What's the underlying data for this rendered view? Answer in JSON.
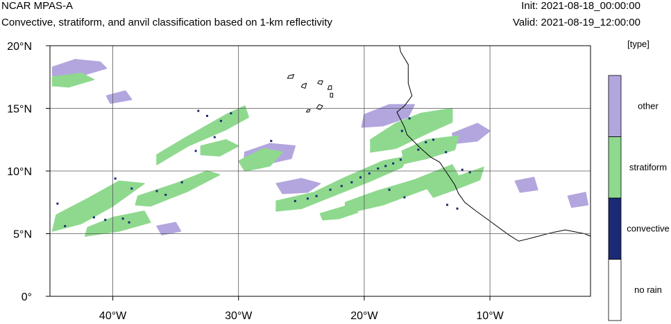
{
  "header": {
    "title": "NCAR MPAS-A",
    "subtitle": "Convective, stratiform, and anvil classification based on 1-km reflectivity",
    "init": "Init: 2021-08-18_00:00:00",
    "valid": "Valid: 2021-08-19_12:00:00"
  },
  "colors": {
    "no_rain": "#ffffff",
    "convective": "#1b2a74",
    "stratiform": "#8ed98e",
    "other": "#b3a6de",
    "coastline": "#000000",
    "grid": "#555555"
  },
  "chart_data": {
    "type": "heatmap",
    "projection": "cylindrical equidistant",
    "xlim": [
      -45,
      -2
    ],
    "ylim": [
      0,
      20
    ],
    "xticks": [
      {
        "value": -40,
        "label": "40°W"
      },
      {
        "value": -30,
        "label": "30°W"
      },
      {
        "value": -20,
        "label": "20°W"
      },
      {
        "value": -10,
        "label": "10°W"
      }
    ],
    "yticks": [
      {
        "value": 0,
        "label": "0°"
      },
      {
        "value": 5,
        "label": "5°N"
      },
      {
        "value": 10,
        "label": "10°N"
      },
      {
        "value": 15,
        "label": "15°N"
      },
      {
        "value": 20,
        "label": "20°N"
      }
    ],
    "grid": true,
    "colorbar": {
      "title": "[type]",
      "position": "right",
      "categories": [
        "no rain",
        "convective",
        "stratiform",
        "other"
      ]
    },
    "regions": [
      {
        "class": "stratiform",
        "polygon": [
          [
            -44.5,
            6.5
          ],
          [
            -42,
            7.8
          ],
          [
            -39.5,
            9.2
          ],
          [
            -37.5,
            9.0
          ],
          [
            -40,
            7.2
          ],
          [
            -42.5,
            5.8
          ],
          [
            -44.8,
            5.2
          ]
        ]
      },
      {
        "class": "stratiform",
        "polygon": [
          [
            -42,
            5.5
          ],
          [
            -40,
            6.3
          ],
          [
            -37.5,
            6.8
          ],
          [
            -37,
            5.9
          ],
          [
            -39.5,
            5.2
          ],
          [
            -42.2,
            4.8
          ]
        ]
      },
      {
        "class": "stratiform",
        "polygon": [
          [
            -38,
            8.0
          ],
          [
            -35,
            9.0
          ],
          [
            -32.5,
            10.0
          ],
          [
            -31.5,
            9.7
          ],
          [
            -34,
            8.4
          ],
          [
            -37,
            7.2
          ],
          [
            -38.2,
            7.3
          ]
        ]
      },
      {
        "class": "stratiform",
        "polygon": [
          [
            -36.5,
            11.3
          ],
          [
            -34.5,
            12.5
          ],
          [
            -31,
            14.5
          ],
          [
            -29.5,
            15.2
          ],
          [
            -29.2,
            14.3
          ],
          [
            -31,
            13.3
          ],
          [
            -34,
            12.0
          ],
          [
            -36.5,
            10.5
          ]
        ]
      },
      {
        "class": "stratiform",
        "polygon": [
          [
            -33,
            12.0
          ],
          [
            -31,
            12.5
          ],
          [
            -30,
            12.0
          ],
          [
            -31.5,
            11.2
          ],
          [
            -33,
            11.3
          ]
        ]
      },
      {
        "class": "stratiform",
        "polygon": [
          [
            -30,
            10.8
          ],
          [
            -28,
            11.8
          ],
          [
            -26.5,
            11.5
          ],
          [
            -27.5,
            10.4
          ],
          [
            -29.5,
            10.0
          ]
        ]
      },
      {
        "class": "stratiform",
        "polygon": [
          [
            -27,
            7.6
          ],
          [
            -24,
            8.3
          ],
          [
            -21.5,
            9.5
          ],
          [
            -18.5,
            10.8
          ],
          [
            -16.5,
            11.2
          ],
          [
            -17,
            10.3
          ],
          [
            -19.5,
            9.2
          ],
          [
            -22.5,
            8.0
          ],
          [
            -25,
            7.0
          ],
          [
            -27,
            6.8
          ]
        ]
      },
      {
        "class": "stratiform",
        "polygon": [
          [
            -21.5,
            7.5
          ],
          [
            -19,
            8.4
          ],
          [
            -16,
            9.3
          ],
          [
            -13,
            10.5
          ],
          [
            -12.5,
            9.6
          ],
          [
            -15,
            8.6
          ],
          [
            -18.5,
            7.3
          ],
          [
            -21.5,
            6.6
          ]
        ]
      },
      {
        "class": "stratiform",
        "polygon": [
          [
            -19.5,
            12.5
          ],
          [
            -17.5,
            13.8
          ],
          [
            -15.5,
            14.6
          ],
          [
            -13,
            15.0
          ],
          [
            -13,
            13.9
          ],
          [
            -15,
            13.0
          ],
          [
            -17.5,
            11.8
          ],
          [
            -19.5,
            11.5
          ]
        ]
      },
      {
        "class": "stratiform",
        "polygon": [
          [
            -17,
            11.6
          ],
          [
            -15,
            12.5
          ],
          [
            -12.5,
            12.8
          ],
          [
            -12.8,
            11.7
          ],
          [
            -15,
            11.0
          ],
          [
            -16.8,
            10.6
          ]
        ]
      },
      {
        "class": "stratiform",
        "polygon": [
          [
            -15,
            8.6
          ],
          [
            -12.5,
            9.6
          ],
          [
            -10.5,
            10.3
          ],
          [
            -10.8,
            9.3
          ],
          [
            -12.8,
            8.5
          ],
          [
            -14.5,
            7.9
          ]
        ]
      },
      {
        "class": "stratiform",
        "polygon": [
          [
            -44.8,
            17.5
          ],
          [
            -42.5,
            17.8
          ],
          [
            -41.5,
            17.3
          ],
          [
            -43.5,
            16.7
          ],
          [
            -44.8,
            16.8
          ]
        ]
      },
      {
        "class": "stratiform",
        "polygon": [
          [
            -23.5,
            6.6
          ],
          [
            -21.5,
            7.2
          ],
          [
            -20.5,
            6.7
          ],
          [
            -22,
            6.2
          ],
          [
            -23.3,
            6.1
          ]
        ]
      },
      {
        "class": "other",
        "polygon": [
          [
            -44.8,
            18.3
          ],
          [
            -43,
            18.9
          ],
          [
            -41,
            18.7
          ],
          [
            -40.5,
            18.2
          ],
          [
            -42.5,
            17.6
          ],
          [
            -44.8,
            17.6
          ]
        ]
      },
      {
        "class": "other",
        "polygon": [
          [
            -29.5,
            11.5
          ],
          [
            -27.5,
            12.2
          ],
          [
            -25.5,
            12.0
          ],
          [
            -25.8,
            11.0
          ],
          [
            -28,
            10.5
          ],
          [
            -29.6,
            10.5
          ]
        ]
      },
      {
        "class": "other",
        "polygon": [
          [
            -27,
            9.0
          ],
          [
            -25,
            9.4
          ],
          [
            -23.5,
            9.0
          ],
          [
            -24.5,
            8.3
          ],
          [
            -26.5,
            8.2
          ]
        ]
      },
      {
        "class": "other",
        "polygon": [
          [
            -20,
            14.5
          ],
          [
            -18,
            15.3
          ],
          [
            -16,
            15.3
          ],
          [
            -16.5,
            14.3
          ],
          [
            -18.5,
            13.6
          ],
          [
            -20.2,
            13.5
          ]
        ]
      },
      {
        "class": "other",
        "polygon": [
          [
            -13,
            13.0
          ],
          [
            -11,
            13.8
          ],
          [
            -10,
            13.2
          ],
          [
            -11,
            12.4
          ],
          [
            -12.8,
            12.2
          ]
        ]
      },
      {
        "class": "other",
        "polygon": [
          [
            -8,
            9.2
          ],
          [
            -6.5,
            9.5
          ],
          [
            -6.2,
            8.5
          ],
          [
            -7.6,
            8.3
          ]
        ]
      },
      {
        "class": "other",
        "polygon": [
          [
            -3.8,
            8.0
          ],
          [
            -2.4,
            8.3
          ],
          [
            -2.2,
            7.3
          ],
          [
            -3.5,
            7.1
          ]
        ]
      },
      {
        "class": "other",
        "polygon": [
          [
            -36.5,
            5.6
          ],
          [
            -35,
            5.9
          ],
          [
            -34.6,
            5.2
          ],
          [
            -36.1,
            4.9
          ]
        ]
      },
      {
        "class": "other",
        "polygon": [
          [
            -40.5,
            16.0
          ],
          [
            -39,
            16.4
          ],
          [
            -38.5,
            15.7
          ],
          [
            -40.2,
            15.4
          ]
        ]
      }
    ],
    "convective_cells": [
      [
        -41.5,
        6.3
      ],
      [
        -40.6,
        6.1
      ],
      [
        -39.2,
        6.2
      ],
      [
        -38.7,
        5.9
      ],
      [
        -39.8,
        9.4
      ],
      [
        -38.5,
        8.6
      ],
      [
        -36.5,
        8.4
      ],
      [
        -35.8,
        8.1
      ],
      [
        -34.5,
        9.1
      ],
      [
        -33.2,
        14.8
      ],
      [
        -32.5,
        14.4
      ],
      [
        -31.4,
        14.0
      ],
      [
        -30.6,
        14.6
      ],
      [
        -33.4,
        11.6
      ],
      [
        -31.9,
        12.7
      ],
      [
        -25.5,
        7.6
      ],
      [
        -24.5,
        7.8
      ],
      [
        -23.8,
        8.0
      ],
      [
        -22.7,
        8.5
      ],
      [
        -21.8,
        8.8
      ],
      [
        -21.0,
        9.1
      ],
      [
        -20.3,
        9.5
      ],
      [
        -19.6,
        9.8
      ],
      [
        -18.9,
        10.2
      ],
      [
        -18.3,
        10.4
      ],
      [
        -17.7,
        10.6
      ],
      [
        -17.1,
        10.9
      ],
      [
        -18.0,
        8.5
      ],
      [
        -16.8,
        7.9
      ],
      [
        -15.7,
        11.7
      ],
      [
        -15.1,
        12.3
      ],
      [
        -14.5,
        12.5
      ],
      [
        -17.0,
        13.2
      ],
      [
        -16.4,
        14.2
      ],
      [
        -13.5,
        11.5
      ],
      [
        -12.2,
        10.1
      ],
      [
        -11.6,
        9.9
      ],
      [
        -13.4,
        7.3
      ],
      [
        -12.6,
        7.0
      ],
      [
        -43.8,
        5.6
      ],
      [
        -44.4,
        7.4
      ],
      [
        -27.4,
        12.4
      ]
    ],
    "islands": [
      [
        [
          -24.9,
          16.9
        ],
        [
          -24.6,
          17.0
        ],
        [
          -24.7,
          16.6
        ],
        [
          -25.0,
          16.7
        ]
      ],
      [
        [
          -23.6,
          17.2
        ],
        [
          -23.3,
          17.2
        ],
        [
          -23.4,
          16.9
        ],
        [
          -23.7,
          17.0
        ]
      ],
      [
        [
          -22.8,
          16.8
        ],
        [
          -22.6,
          16.8
        ],
        [
          -22.6,
          16.5
        ],
        [
          -22.9,
          16.5
        ]
      ],
      [
        [
          -22.7,
          16.2
        ],
        [
          -22.5,
          16.2
        ],
        [
          -22.5,
          15.9
        ],
        [
          -22.7,
          15.9
        ]
      ],
      [
        [
          -23.6,
          15.3
        ],
        [
          -23.3,
          15.2
        ],
        [
          -23.5,
          14.9
        ],
        [
          -23.8,
          15.0
        ]
      ],
      [
        [
          -24.5,
          14.9
        ],
        [
          -24.3,
          14.9
        ],
        [
          -24.4,
          14.7
        ],
        [
          -24.6,
          14.7
        ]
      ],
      [
        [
          -26.0,
          17.6
        ],
        [
          -25.6,
          17.7
        ],
        [
          -25.7,
          17.4
        ],
        [
          -26.1,
          17.4
        ]
      ]
    ],
    "coastline": [
      [
        -17.2,
        20.0
      ],
      [
        -17.1,
        19.5
      ],
      [
        -16.5,
        18.5
      ],
      [
        -16.5,
        17.0
      ],
      [
        -16.2,
        16.0
      ],
      [
        -16.8,
        15.2
      ],
      [
        -17.4,
        14.7
      ],
      [
        -16.8,
        13.5
      ],
      [
        -16.6,
        12.9
      ],
      [
        -15.5,
        11.8
      ],
      [
        -14.7,
        11.1
      ],
      [
        -14.0,
        10.7
      ],
      [
        -13.4,
        9.8
      ],
      [
        -12.8,
        8.9
      ],
      [
        -12.5,
        8.2
      ],
      [
        -12.0,
        7.5
      ],
      [
        -11.1,
        6.8
      ],
      [
        -10.0,
        6.0
      ],
      [
        -8.5,
        4.9
      ],
      [
        -7.7,
        4.4
      ],
      [
        -6.5,
        4.7
      ],
      [
        -5.0,
        5.1
      ],
      [
        -4.0,
        5.3
      ],
      [
        -2.5,
        5.0
      ],
      [
        -2.0,
        4.8
      ]
    ]
  }
}
